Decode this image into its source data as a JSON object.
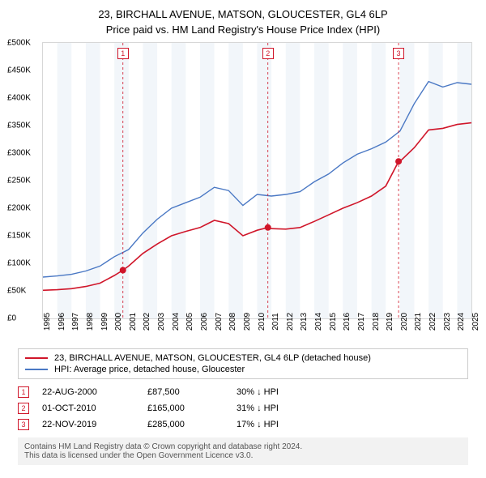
{
  "title_line1": "23, BIRCHALL AVENUE, MATSON, GLOUCESTER, GL4 6LP",
  "title_line2": "Price paid vs. HM Land Registry's House Price Index (HPI)",
  "chart": {
    "type": "line",
    "xlim": [
      1995,
      2025
    ],
    "ylim": [
      0,
      500000
    ],
    "ytick_step": 50000,
    "ytick_prefix": "£",
    "ytick_suffix_1000": "K",
    "xticks": [
      1995,
      1996,
      1997,
      1998,
      1999,
      2000,
      2001,
      2002,
      2003,
      2004,
      2005,
      2006,
      2007,
      2008,
      2009,
      2010,
      2011,
      2012,
      2013,
      2014,
      2015,
      2016,
      2017,
      2018,
      2019,
      2020,
      2021,
      2022,
      2023,
      2024,
      2025
    ],
    "background_color": "#ffffff",
    "xtick_rotation": -90,
    "xtick_fontsize": 10,
    "ytick_fontsize": 10,
    "border_color": "#88888855",
    "series": [
      {
        "name": "price_paid",
        "label": "23, BIRCHALL AVENUE, MATSON, GLOUCESTER, GL4 6LP (detached house)",
        "color": "#d0162a",
        "line_width": 1.6,
        "x": [
          1995,
          1996,
          1997,
          1998,
          1999,
          2000,
          2000.6,
          2001,
          2002,
          2003,
          2004,
          2005,
          2006,
          2007,
          2008,
          2009,
          2010,
          2010.75,
          2011,
          2012,
          2013,
          2014,
          2015,
          2016,
          2017,
          2018,
          2019,
          2019.9,
          2020,
          2021,
          2022,
          2023,
          2024,
          2025
        ],
        "y": [
          51000,
          52000,
          54000,
          58000,
          64000,
          78000,
          87500,
          95000,
          118000,
          135000,
          150000,
          158000,
          165000,
          178000,
          172000,
          150000,
          160000,
          165000,
          163000,
          162000,
          165000,
          176000,
          188000,
          200000,
          210000,
          222000,
          240000,
          285000,
          285000,
          310000,
          342000,
          345000,
          352000,
          355000
        ]
      },
      {
        "name": "hpi",
        "label": "HPI: Average price, detached house, Gloucester",
        "color": "#4a78c4",
        "line_width": 1.4,
        "x": [
          1995,
          1996,
          1997,
          1998,
          1999,
          2000,
          2001,
          2002,
          2003,
          2004,
          2005,
          2006,
          2007,
          2008,
          2009,
          2010,
          2011,
          2012,
          2013,
          2014,
          2015,
          2016,
          2017,
          2018,
          2019,
          2020,
          2021,
          2022,
          2023,
          2024,
          2025
        ],
        "y": [
          75000,
          77000,
          80000,
          86000,
          95000,
          112000,
          125000,
          155000,
          180000,
          200000,
          210000,
          220000,
          238000,
          232000,
          205000,
          225000,
          222000,
          225000,
          230000,
          248000,
          262000,
          282000,
          298000,
          308000,
          320000,
          340000,
          390000,
          430000,
          420000,
          428000,
          425000
        ]
      }
    ],
    "markers": [
      {
        "num": "1",
        "x": 2000.6,
        "y": 87500,
        "box_color": "#d0162a",
        "dot_color": "#d0162a",
        "dash_color": "#d0162a"
      },
      {
        "num": "2",
        "x": 2010.75,
        "y": 165000,
        "box_color": "#d0162a",
        "dot_color": "#d0162a",
        "dash_color": "#d0162a"
      },
      {
        "num": "3",
        "x": 2019.9,
        "y": 285000,
        "box_color": "#d0162a",
        "dot_color": "#d0162a",
        "dash_color": "#d0162a"
      }
    ]
  },
  "legend": {
    "border_color": "#ccc",
    "fontsize": 11,
    "items": [
      {
        "color": "#d0162a",
        "label": "23, BIRCHALL AVENUE, MATSON, GLOUCESTER, GL4 6LP (detached house)"
      },
      {
        "color": "#4a78c4",
        "label": "HPI: Average price, detached house, Gloucester"
      }
    ]
  },
  "transactions": {
    "box_color": "#d0162a",
    "fontsize": 11,
    "rows": [
      {
        "num": "1",
        "date": "22-AUG-2000",
        "price": "£87,500",
        "diff": "30% ↓ HPI"
      },
      {
        "num": "2",
        "date": "01-OCT-2010",
        "price": "£165,000",
        "diff": "31% ↓ HPI"
      },
      {
        "num": "3",
        "date": "22-NOV-2019",
        "price": "£285,000",
        "diff": "17% ↓ HPI"
      }
    ]
  },
  "footer": {
    "background_color": "#f2f2f2",
    "text_color": "#555",
    "fontsize": 10,
    "line1": "Contains HM Land Registry data © Crown copyright and database right 2024.",
    "line2": "This data is licensed under the Open Government Licence v3.0."
  }
}
